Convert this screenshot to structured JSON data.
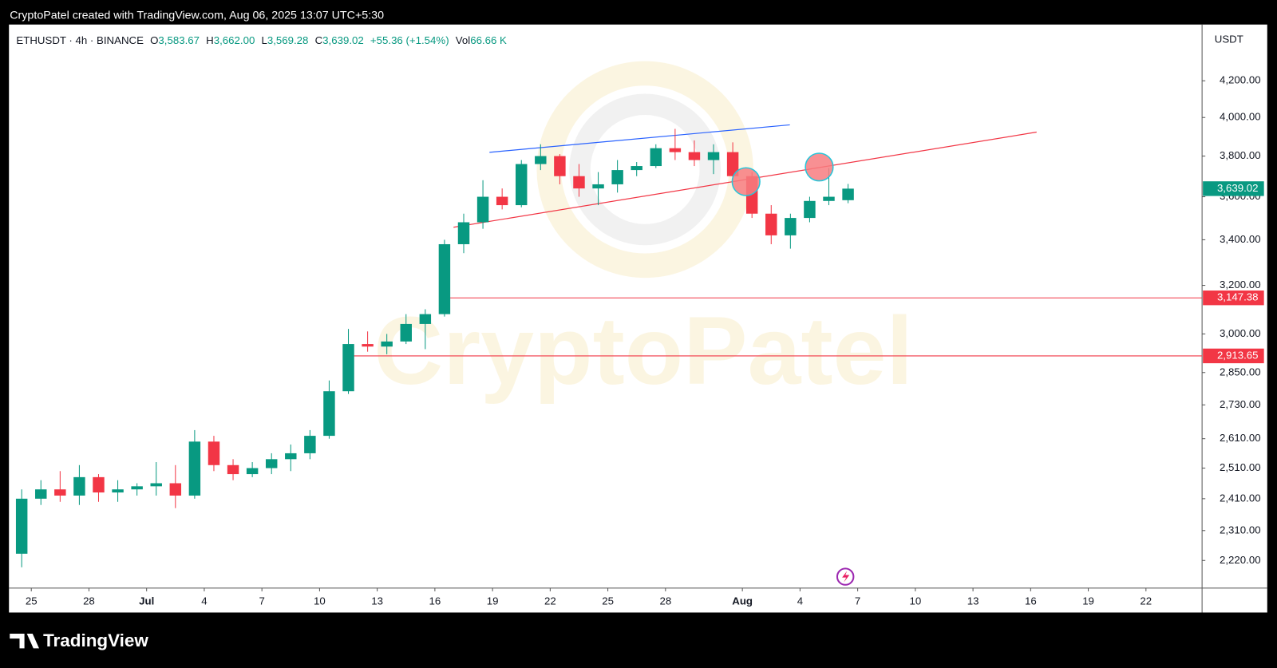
{
  "header": "CryptoPatel created with TradingView.com, Aug 06, 2025 13:07 UTC+5:30",
  "footer": "TradingView",
  "watermark": "CryptoPatel",
  "legend": {
    "symbol": "ETHUSDT · 4h · BINANCE",
    "open_key": "O",
    "open": "3,583.67",
    "high_key": "H",
    "high": "3,662.00",
    "low_key": "L",
    "low": "3,569.28",
    "close_key": "C",
    "close": "3,639.02",
    "change": "+55.36 (+1.54%)",
    "volume_key": "Vol",
    "volume": "66.66 K"
  },
  "chart_data": {
    "type": "candlestick",
    "currency": "USDT",
    "log_scale": true,
    "up_color": "#089981",
    "down_color": "#f23645",
    "x": [
      -7,
      -6,
      -5,
      -4,
      -3,
      -2,
      -1,
      0,
      1,
      2,
      3,
      4,
      5,
      6,
      7,
      8,
      9,
      10,
      11,
      12,
      13,
      14,
      15,
      16,
      17,
      18,
      19,
      20,
      21,
      22,
      23,
      24,
      25,
      26,
      27,
      28,
      29,
      30,
      31,
      32,
      33,
      34,
      35,
      36
    ],
    "open": [
      2240,
      2410,
      2440,
      2420,
      2480,
      2430,
      2440,
      2450,
      2460,
      2420,
      2600,
      2520,
      2490,
      2510,
      2540,
      2560,
      2620,
      2780,
      2960,
      2950,
      2970,
      3040,
      3080,
      3380,
      3480,
      3600,
      3560,
      3760,
      3800,
      3700,
      3640,
      3660,
      3730,
      3750,
      3840,
      3820,
      3780,
      3820,
      3700,
      3520,
      3420,
      3500,
      3580,
      3583.67
    ],
    "high": [
      2440,
      2470,
      2500,
      2520,
      2490,
      2470,
      2460,
      2530,
      2520,
      2640,
      2620,
      2540,
      2530,
      2560,
      2590,
      2640,
      2820,
      3020,
      3010,
      3000,
      3080,
      3100,
      3400,
      3520,
      3680,
      3640,
      3780,
      3860,
      3810,
      3760,
      3720,
      3780,
      3770,
      3860,
      3940,
      3880,
      3860,
      3870,
      3720,
      3560,
      3520,
      3600,
      3740,
      3662.0
    ],
    "low": [
      2200,
      2390,
      2400,
      2390,
      2400,
      2400,
      2420,
      2420,
      2380,
      2410,
      2500,
      2470,
      2480,
      2490,
      2500,
      2540,
      2610,
      2770,
      2930,
      2920,
      2960,
      2940,
      3070,
      3340,
      3450,
      3540,
      3550,
      3730,
      3660,
      3600,
      3560,
      3620,
      3700,
      3740,
      3780,
      3750,
      3710,
      3680,
      3500,
      3380,
      3360,
      3480,
      3560,
      3569.28
    ],
    "close": [
      2410,
      2440,
      2420,
      2480,
      2430,
      2440,
      2450,
      2460,
      2420,
      2600,
      2520,
      2490,
      2510,
      2540,
      2560,
      2620,
      2780,
      2960,
      2950,
      2970,
      3040,
      3080,
      3380,
      3480,
      3600,
      3560,
      3760,
      3800,
      3700,
      3640,
      3660,
      3730,
      3750,
      3840,
      3820,
      3780,
      3820,
      3700,
      3520,
      3420,
      3500,
      3580,
      3600,
      3639.02
    ],
    "xlim": [
      -7.12,
      54.92
    ],
    "xticks": [
      {
        "value": -6,
        "label": "25"
      },
      {
        "value": -3,
        "label": "28"
      },
      {
        "value": 0,
        "label": "Jul"
      },
      {
        "value": 3,
        "label": "4"
      },
      {
        "value": 6,
        "label": "7"
      },
      {
        "value": 9,
        "label": "10"
      },
      {
        "value": 12,
        "label": "13"
      },
      {
        "value": 15,
        "label": "16"
      },
      {
        "value": 18,
        "label": "19"
      },
      {
        "value": 21,
        "label": "22"
      },
      {
        "value": 24,
        "label": "25"
      },
      {
        "value": 27,
        "label": "28"
      },
      {
        "value": 31,
        "label": "Aug"
      },
      {
        "value": 34,
        "label": "4"
      },
      {
        "value": 37,
        "label": "7"
      },
      {
        "value": 40,
        "label": "10"
      },
      {
        "value": 43,
        "label": "13"
      },
      {
        "value": 46,
        "label": "16"
      },
      {
        "value": 49,
        "label": "19"
      },
      {
        "value": 52,
        "label": "22"
      }
    ],
    "ylim": [
      2140,
      4526
    ],
    "yticks": [
      {
        "value": 2220,
        "label": "2,220.00"
      },
      {
        "value": 2310,
        "label": "2,310.00"
      },
      {
        "value": 2410,
        "label": "2,410.00"
      },
      {
        "value": 2510,
        "label": "2,510.00"
      },
      {
        "value": 2610,
        "label": "2,610.00"
      },
      {
        "value": 2730,
        "label": "2,730.00"
      },
      {
        "value": 2850,
        "label": "2,850.00"
      },
      {
        "value": 3000,
        "label": "3,000.00"
      },
      {
        "value": 3200,
        "label": "3,200.00"
      },
      {
        "value": 3400,
        "label": "3,400.00"
      },
      {
        "value": 3600,
        "label": "3,600.00"
      },
      {
        "value": 3800,
        "label": "3,800.00"
      },
      {
        "value": 4000,
        "label": "4,000.00"
      },
      {
        "value": 4200,
        "label": "4,200.00"
      }
    ],
    "last_price": {
      "value": 3639.02,
      "label": "3,639.02",
      "color": "#089981"
    },
    "levels": [
      {
        "value": 3147.38,
        "label": "3,147.38",
        "start_x": 15.47,
        "color": "#f23645"
      },
      {
        "value": 2913.65,
        "label": "2,913.65",
        "start_x": 10.38,
        "color": "#f23645"
      }
    ],
    "trendlines": [
      {
        "color": "#2962ff",
        "x": [
          17.84,
          33.47
        ],
        "values": [
          3819,
          3961
        ]
      },
      {
        "color": "#f23645",
        "x": [
          15.97,
          46.31
        ],
        "values": [
          3457,
          3923
        ]
      }
    ],
    "markers": {
      "color": "#f77c80",
      "x": [
        31.19,
        35.0
      ],
      "values": [
        3673,
        3745
      ]
    }
  }
}
